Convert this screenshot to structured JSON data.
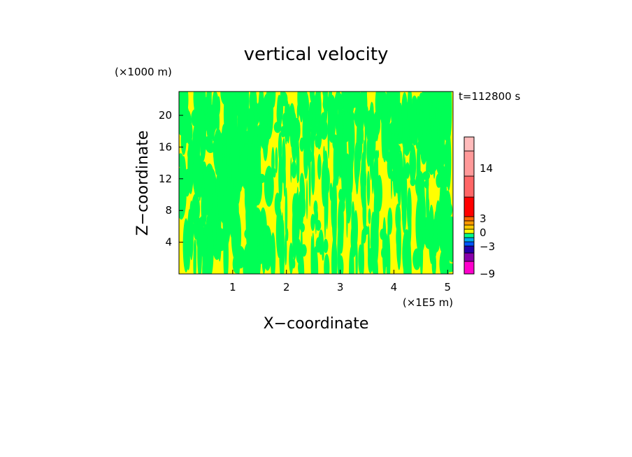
{
  "chart_data": {
    "type": "heatmap",
    "title": "vertical velocity",
    "xlabel": "X−coordinate",
    "ylabel": "Z−coordinate",
    "x_unit": "(×1E5 m)",
    "y_unit": "(×1000 m)",
    "time_label": "t=112800 s",
    "xlim": [
      0,
      5.1
    ],
    "ylim": [
      0,
      23
    ],
    "x_ticks": [
      "1",
      "2",
      "3",
      "4",
      "5"
    ],
    "y_ticks": [
      "4",
      "8",
      "12",
      "16",
      "20"
    ],
    "field_colors": {
      "positive": "#ffff00",
      "negative": "#00ff55"
    },
    "colorbar": {
      "labels": [
        "14",
        "3",
        "0",
        "−3",
        "−9"
      ],
      "colors": [
        "#ff00cc",
        "#8800aa",
        "#2200aa",
        "#0055ff",
        "#00aaee",
        "#00ff88",
        "#ffff00",
        "#ffcc00",
        "#ff9900",
        "#ff6600",
        "#ff0000",
        "#ff6666",
        "#ff9999",
        "#ffbbbb"
      ]
    }
  }
}
